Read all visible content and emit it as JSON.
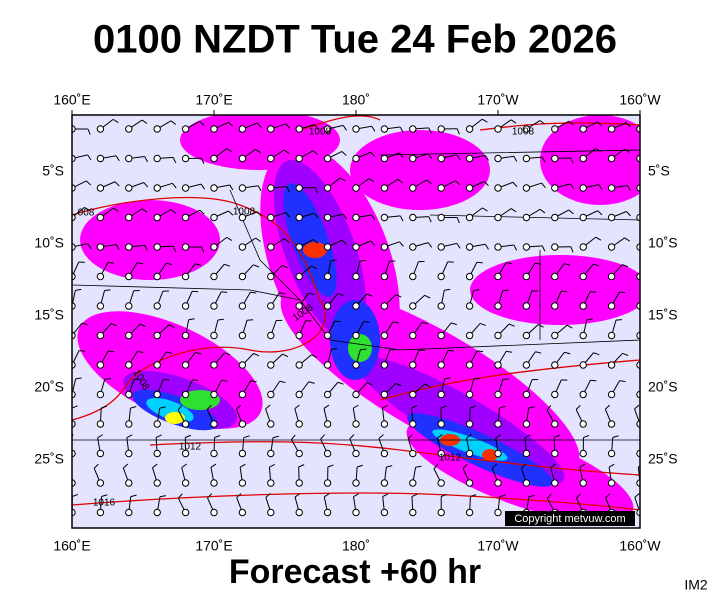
{
  "title": "0100 NZDT Tue 24 Feb 2026",
  "lon_labels": [
    "160˚E",
    "170˚E",
    "180˚",
    "170˚W",
    "160˚W"
  ],
  "lat_labels": [
    "5˚S",
    "10˚S",
    "15˚S",
    "20˚S",
    "25˚S"
  ],
  "isobar_labels": [
    "1008",
    "1008",
    "1008",
    "008",
    "1008",
    "1008",
    "1012",
    "1012",
    "1016"
  ],
  "copyright": "Copyright metvuw.com",
  "footer": "Forecast +60 hr",
  "code": "IM2"
}
